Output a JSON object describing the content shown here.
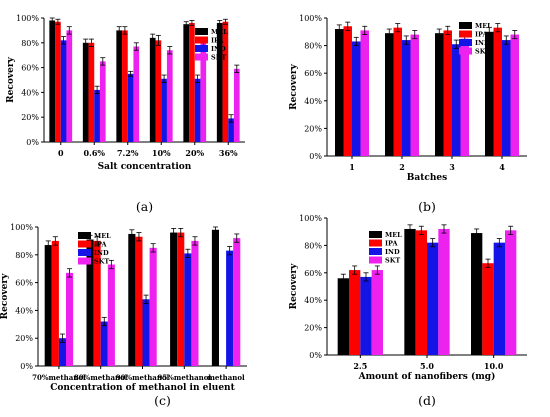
{
  "chart_data": [
    {
      "panel": "(a)",
      "type": "bar",
      "ylabel": "Recovery",
      "xlabel": "Salt concentration",
      "ylim": [
        0,
        100
      ],
      "yticks": [
        "0%",
        "20%",
        "40%",
        "60%",
        "80%",
        "100%"
      ],
      "categories": [
        "0",
        "0.6%",
        "7.2%",
        "10%",
        "20%",
        "36%"
      ],
      "legend_position": "top-right",
      "series": [
        {
          "name": "MEL",
          "color": "#000000",
          "values": [
            98,
            80,
            90,
            84,
            95,
            96
          ],
          "err": [
            2,
            3,
            3,
            3,
            2,
            2
          ]
        },
        {
          "name": "IPA",
          "color": "#ff0000",
          "values": [
            97,
            80,
            90,
            82,
            96,
            97
          ],
          "err": [
            2,
            3,
            3,
            4,
            2,
            2
          ]
        },
        {
          "name": "IND",
          "color": "#1414e6",
          "values": [
            82,
            42,
            55,
            51,
            51,
            19
          ],
          "err": [
            3,
            3,
            2,
            3,
            3,
            3
          ]
        },
        {
          "name": "SKT",
          "color": "#ee22ee",
          "values": [
            90,
            65,
            77,
            74,
            80,
            59
          ],
          "err": [
            3,
            3,
            3,
            3,
            3,
            3
          ]
        }
      ]
    },
    {
      "panel": "(b)",
      "type": "bar",
      "ylabel": "Recovery",
      "xlabel": "Batches",
      "ylim": [
        0,
        100
      ],
      "yticks": [
        "0%",
        "20%",
        "40%",
        "60%",
        "80%",
        "100%"
      ],
      "categories": [
        "1",
        "2",
        "3",
        "4"
      ],
      "legend_position": "top-right",
      "series": [
        {
          "name": "MEL",
          "color": "#000000",
          "values": [
            92,
            89,
            89,
            90
          ],
          "err": [
            3,
            3,
            3,
            3
          ]
        },
        {
          "name": "IPA",
          "color": "#ff0000",
          "values": [
            94,
            93,
            91,
            93
          ],
          "err": [
            3,
            3,
            3,
            3
          ]
        },
        {
          "name": "IND",
          "color": "#1414e6",
          "values": [
            83,
            84,
            81,
            84
          ],
          "err": [
            3,
            3,
            3,
            3
          ]
        },
        {
          "name": "SKT",
          "color": "#ee22ee",
          "values": [
            91,
            88,
            85,
            88
          ],
          "err": [
            3,
            3,
            3,
            3
          ]
        }
      ]
    },
    {
      "panel": "(c)",
      "type": "bar",
      "ylabel": "Recovery",
      "xlabel": "Concentration of methanol in eluent",
      "ylim": [
        0,
        100
      ],
      "yticks": [
        "0%",
        "20%",
        "40%",
        "60%",
        "80%",
        "100%"
      ],
      "categories": [
        "70%methanol",
        "80%methanol",
        "90%methanol",
        "95%methanol",
        "methanol"
      ],
      "legend_position": "top-right",
      "series": [
        {
          "name": "MEL",
          "color": "#000000",
          "values": [
            87,
            91,
            95,
            96,
            98
          ],
          "err": [
            3,
            3,
            3,
            3,
            2
          ]
        },
        {
          "name": "IPA",
          "color": "#ff0000",
          "values": [
            90,
            90,
            93,
            96,
            null
          ],
          "err": [
            3,
            3,
            3,
            3,
            0
          ]
        },
        {
          "name": "IND",
          "color": "#1414e6",
          "values": [
            20,
            32,
            48,
            81,
            83
          ],
          "err": [
            3,
            3,
            3,
            3,
            3
          ]
        },
        {
          "name": "SKT",
          "color": "#ee22ee",
          "values": [
            67,
            73,
            85,
            90,
            92
          ],
          "err": [
            3,
            3,
            3,
            3,
            3
          ]
        }
      ]
    },
    {
      "panel": "(d)",
      "type": "bar",
      "ylabel": "Recovery",
      "xlabel": "Amount of nanofibers (mg)",
      "ylim": [
        0,
        100
      ],
      "yticks": [
        "0%",
        "20%",
        "40%",
        "60%",
        "80%",
        "100%"
      ],
      "categories": [
        "2.5",
        "5.0",
        "10.0"
      ],
      "legend_position": "top-left",
      "series": [
        {
          "name": "MEL",
          "color": "#000000",
          "values": [
            56,
            92,
            89
          ],
          "err": [
            3,
            3,
            3
          ]
        },
        {
          "name": "IPA",
          "color": "#ff0000",
          "values": [
            62,
            91,
            67
          ],
          "err": [
            3,
            3,
            3
          ]
        },
        {
          "name": "IND",
          "color": "#1414e6",
          "values": [
            57,
            82,
            82
          ],
          "err": [
            3,
            3,
            3
          ]
        },
        {
          "name": "SKT",
          "color": "#ee22ee",
          "values": [
            62,
            92,
            91
          ],
          "err": [
            3,
            3,
            3
          ]
        }
      ]
    }
  ]
}
